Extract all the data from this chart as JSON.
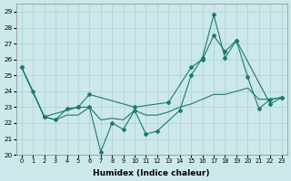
{
  "xlabel": "Humidex (Indice chaleur)",
  "xlim": [
    -0.5,
    23.5
  ],
  "ylim": [
    20,
    29.5
  ],
  "yticks": [
    20,
    21,
    22,
    23,
    24,
    25,
    26,
    27,
    28,
    29
  ],
  "xticks": [
    0,
    1,
    2,
    3,
    4,
    5,
    6,
    7,
    8,
    9,
    10,
    11,
    12,
    13,
    14,
    15,
    16,
    17,
    18,
    19,
    20,
    21,
    22,
    23
  ],
  "bg_color": "#cce8ea",
  "grid_color": "#aad0d3",
  "line_color": "#1a7a6e",
  "s1_x": [
    0,
    1,
    2,
    3,
    4,
    5,
    6,
    7,
    8,
    9,
    10,
    11,
    12,
    14,
    15,
    16,
    17,
    18,
    19,
    20,
    21,
    22,
    23
  ],
  "s1_y": [
    25.5,
    24.0,
    22.4,
    22.2,
    22.9,
    23.0,
    23.0,
    20.2,
    22.0,
    21.6,
    22.8,
    21.3,
    21.5,
    22.8,
    25.0,
    26.1,
    28.8,
    26.1,
    27.2,
    24.9,
    22.9,
    23.5,
    23.6
  ],
  "s2_x": [
    0,
    2,
    5,
    6,
    10,
    13,
    15,
    16,
    17,
    18,
    19,
    22,
    23
  ],
  "s2_y": [
    25.5,
    22.4,
    23.0,
    23.8,
    23.0,
    23.3,
    25.5,
    26.0,
    27.5,
    26.5,
    27.2,
    23.2,
    23.6
  ],
  "s3_x": [
    0,
    2,
    3,
    4,
    5,
    6,
    7,
    8,
    9,
    10,
    11,
    12,
    13,
    14,
    15,
    16,
    17,
    18,
    19,
    20,
    21,
    22,
    23
  ],
  "s3_y": [
    25.5,
    22.4,
    22.2,
    22.5,
    22.5,
    23.0,
    22.2,
    22.3,
    22.2,
    22.8,
    22.5,
    22.5,
    22.7,
    23.0,
    23.2,
    23.5,
    23.8,
    23.8,
    24.0,
    24.2,
    23.5,
    23.5,
    23.6
  ]
}
